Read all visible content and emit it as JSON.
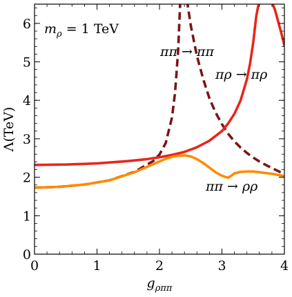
{
  "chart_data": {
    "type": "line",
    "title": "",
    "xlabel": "g_ρππ",
    "ylabel": "Λ(TeV)",
    "xlim": [
      0,
      4
    ],
    "ylim": [
      0,
      6.5
    ],
    "x_ticks": [
      "0",
      "1",
      "2",
      "3",
      "4"
    ],
    "y_ticks": [
      "0",
      "1",
      "2",
      "3",
      "4",
      "5",
      "6"
    ],
    "grid": false,
    "legend": "none",
    "annotations": [
      {
        "text": "m_ρ = 1 TeV",
        "x": 0.1,
        "y": 6.1
      },
      {
        "text": "ππ → ππ",
        "x": 2.02,
        "y": 5.55
      },
      {
        "text": "πρ → πρ",
        "x": 2.85,
        "y": 4.75
      },
      {
        "text": "ππ → ρρ",
        "x": 2.75,
        "y": 1.72
      }
    ],
    "series": [
      {
        "name": "ππ → ππ",
        "color": "#7a1616",
        "dash": true,
        "x": [
          0,
          0.4,
          0.8,
          1.2,
          1.6,
          1.9,
          2.0,
          2.1,
          2.2,
          2.25,
          2.3,
          2.33,
          2.35,
          2.4,
          2.45,
          2.5,
          2.6,
          2.7,
          2.8,
          2.9,
          3.0,
          3.1,
          3.2,
          3.3,
          3.4,
          3.5,
          3.6,
          3.7,
          3.8,
          3.9,
          4.0
        ],
        "y": [
          1.73,
          1.75,
          1.81,
          1.92,
          2.14,
          2.42,
          2.59,
          2.89,
          3.55,
          4.2,
          5.3,
          6.5,
          6.6,
          6.6,
          6.5,
          5.95,
          5.15,
          4.55,
          4.05,
          3.68,
          3.38,
          3.13,
          2.93,
          2.77,
          2.63,
          2.51,
          2.41,
          2.32,
          2.24,
          2.16,
          2.08
        ]
      },
      {
        "name": "πρ → πρ",
        "color": "#e8261b",
        "dash": false,
        "x": [
          0,
          0.5,
          1.0,
          1.5,
          1.8,
          2.0,
          2.2,
          2.4,
          2.6,
          2.8,
          3.0,
          3.1,
          3.2,
          3.3,
          3.4,
          3.45,
          3.5,
          3.55,
          3.6,
          3.65,
          3.7,
          3.75,
          3.8,
          3.85,
          3.9,
          3.95,
          4.0
        ],
        "y": [
          2.32,
          2.33,
          2.36,
          2.42,
          2.47,
          2.52,
          2.58,
          2.66,
          2.78,
          2.95,
          3.2,
          3.4,
          3.65,
          4.0,
          4.55,
          4.95,
          5.5,
          6.2,
          6.6,
          6.6,
          6.6,
          6.6,
          6.55,
          6.35,
          6.05,
          5.75,
          5.42
        ]
      },
      {
        "name": "ππ → ρρ",
        "color": "#ff8a00",
        "dash": false,
        "x": [
          0,
          0.4,
          0.8,
          1.2,
          1.6,
          1.9,
          2.1,
          2.2,
          2.3,
          2.4,
          2.5,
          2.6,
          2.7,
          2.8,
          2.9,
          3.0,
          3.05,
          3.1,
          3.15,
          3.2,
          3.3,
          3.4,
          3.5,
          3.6,
          3.7,
          3.8,
          3.9,
          4.0
        ],
        "y": [
          1.73,
          1.75,
          1.81,
          1.92,
          2.13,
          2.34,
          2.48,
          2.53,
          2.56,
          2.57,
          2.54,
          2.47,
          2.37,
          2.25,
          2.13,
          2.04,
          2.01,
          1.99,
          2.04,
          2.1,
          2.14,
          2.15,
          2.15,
          2.13,
          2.11,
          2.09,
          2.06,
          2.03
        ]
      }
    ]
  }
}
